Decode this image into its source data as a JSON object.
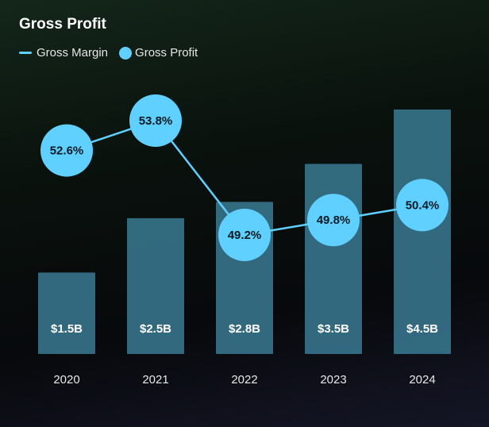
{
  "chart_data": {
    "type": "bar",
    "title": "Gross Profit",
    "categories": [
      "2020",
      "2021",
      "2022",
      "2023",
      "2024"
    ],
    "series": [
      {
        "name": "Gross Profit",
        "kind": "bar",
        "values": [
          1.5,
          2.5,
          2.8,
          3.5,
          4.5
        ],
        "labels": [
          "$1.5B",
          "$2.5B",
          "$2.8B",
          "$3.5B",
          "$4.5B"
        ],
        "color": "#3a7a93"
      },
      {
        "name": "Gross Margin",
        "kind": "line",
        "values": [
          52.6,
          53.8,
          49.2,
          49.8,
          50.4
        ],
        "labels": [
          "52.6%",
          "53.8%",
          "49.2%",
          "49.8%",
          "50.4%"
        ],
        "color": "#5fd0ff"
      }
    ],
    "legend": {
      "placement": "top-left",
      "line_label": "Gross Margin",
      "marker_label": "Gross Profit"
    },
    "bar_ylim": [
      0,
      4.5
    ],
    "line_ylim": [
      49.2,
      53.8
    ],
    "grid": false
  }
}
